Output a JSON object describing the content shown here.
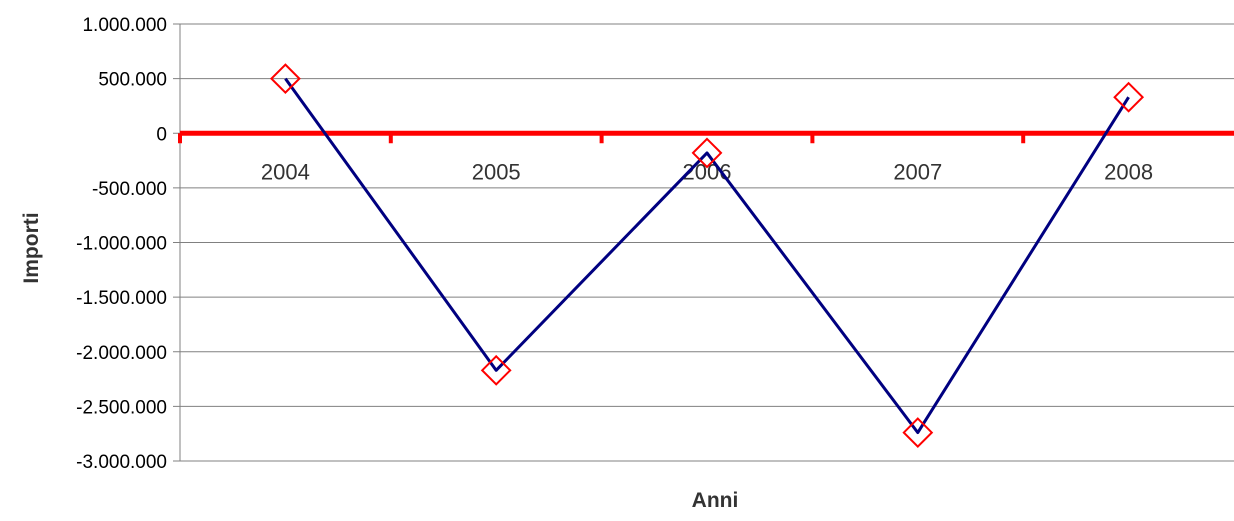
{
  "chart_data": {
    "type": "line",
    "title": "",
    "xlabel": "Anni",
    "ylabel": "Importi",
    "categories": [
      "2004",
      "2005",
      "2006",
      "2007",
      "2008"
    ],
    "series": [
      {
        "values": [
          500000,
          -2170000,
          -180000,
          -2740000,
          330000
        ]
      }
    ],
    "ylim": [
      -3000000,
      1000000
    ],
    "yticks": [
      1000000,
      500000,
      0,
      -500000,
      -1000000,
      -1500000,
      -2000000,
      -2500000,
      -3000000
    ],
    "ytick_labels": [
      "1.000.000",
      "500.000",
      "0",
      "-500.000",
      "-1.000.000",
      "-1.500.000",
      "-2.000.000",
      "-2.500.000",
      "-3.000.000"
    ],
    "grid": true,
    "legend": "none",
    "colors": {
      "line": "#000080",
      "marker": "#ff0000",
      "zero_axis": "#ff0000",
      "grid": "#808080"
    }
  }
}
